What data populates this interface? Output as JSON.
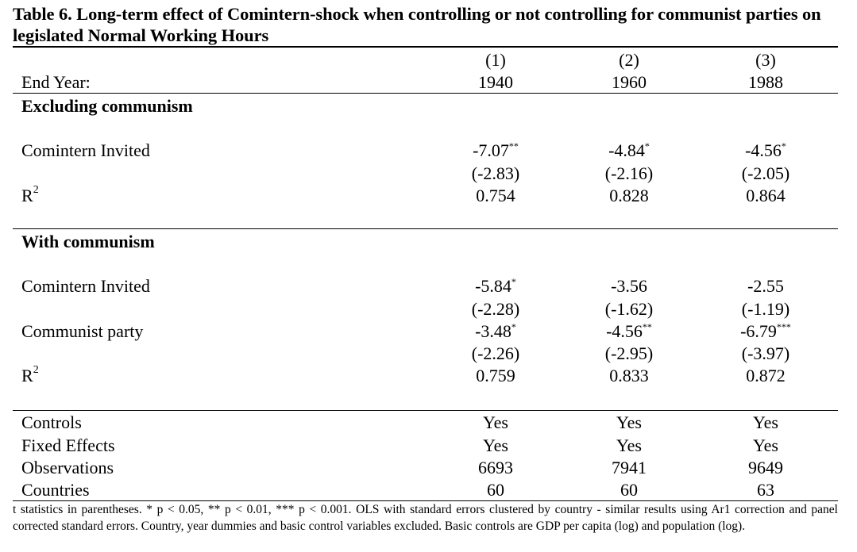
{
  "table": {
    "title": "Table 6. Long-term effect of Comintern-shock when controlling or not controlling for communist parties on legislated Normal Working Hours",
    "end_year_label": "End Year:",
    "columns": [
      {
        "number": "(1)",
        "year": "1940"
      },
      {
        "number": "(2)",
        "year": "1960"
      },
      {
        "number": "(3)",
        "year": "1988"
      }
    ],
    "excluding": {
      "heading": "Excluding communism",
      "comintern_label": "Comintern Invited",
      "comintern": [
        {
          "value": "-7.07",
          "stars": "**",
          "t": "(-2.83)"
        },
        {
          "value": "-4.84",
          "stars": "*",
          "t": "(-2.16)"
        },
        {
          "value": "-4.56",
          "stars": "*",
          "t": "(-2.05)"
        }
      ],
      "r2_label": "R",
      "r2_sup": "2",
      "r2": [
        "0.754",
        "0.828",
        "0.864"
      ]
    },
    "with": {
      "heading": "With communism",
      "comintern_label": "Comintern Invited",
      "comintern": [
        {
          "value": "-5.84",
          "stars": "*",
          "t": "(-2.28)"
        },
        {
          "value": "-3.56",
          "stars": "",
          "t": "(-1.62)"
        },
        {
          "value": "-2.55",
          "stars": "",
          "t": "(-1.19)"
        }
      ],
      "communist_label": "Communist party",
      "communist": [
        {
          "value": "-3.48",
          "stars": "*",
          "t": "(-2.26)"
        },
        {
          "value": "-4.56",
          "stars": "**",
          "t": "(-2.95)"
        },
        {
          "value": "-6.79",
          "stars": "***",
          "t": "(-3.97)"
        }
      ],
      "r2_label": "R",
      "r2_sup": "2",
      "r2": [
        "0.759",
        "0.833",
        "0.872"
      ]
    },
    "bottom": [
      {
        "label": "Controls",
        "values": [
          "Yes",
          "Yes",
          "Yes"
        ]
      },
      {
        "label": "Fixed Effects",
        "values": [
          "Yes",
          "Yes",
          "Yes"
        ]
      },
      {
        "label": "Observations",
        "values": [
          "6693",
          "7941",
          "9649"
        ]
      },
      {
        "label": "Countries",
        "values": [
          "60",
          "60",
          "63"
        ]
      }
    ],
    "note": "t statistics in parentheses. * p < 0.05, ** p < 0.01, *** p < 0.001. OLS with standard errors clustered by country - similar results using Ar1 correction and panel corrected standard errors. Country, year dummies and basic control variables excluded. Basic controls are GDP per capita (log) and population (log)."
  }
}
